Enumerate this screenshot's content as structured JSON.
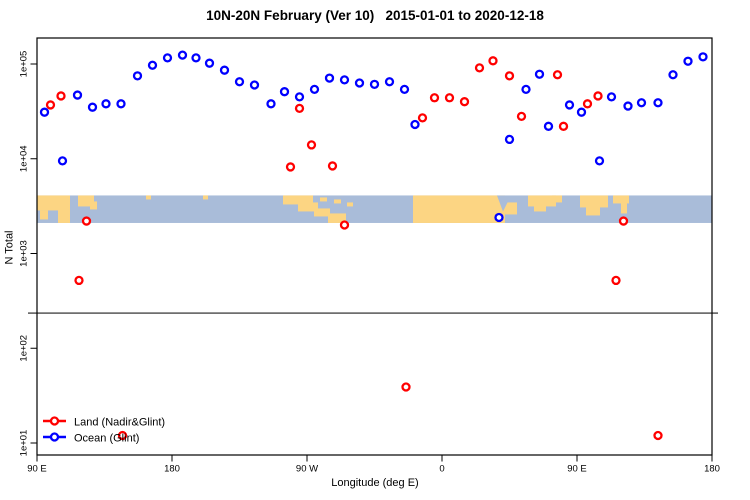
{
  "title": "10N-20N February (Ver 10)   2015-01-01 to 2020-12-18",
  "chart_data": {
    "type": "scatter",
    "title": "10N-20N February (Ver 10)   2015-01-01 to 2020-12-18",
    "xlabel": "Longitude (deg E)",
    "ylabel": "N Total",
    "x_axis": {
      "min": 90,
      "max": 540,
      "ticks": [
        {
          "value": 90,
          "label": "90 E"
        },
        {
          "value": 180,
          "label": "180"
        },
        {
          "value": 270,
          "label": "90 W"
        },
        {
          "value": 360,
          "label": "0"
        },
        {
          "value": 450,
          "label": "90 E"
        },
        {
          "value": 540,
          "label": "180"
        }
      ]
    },
    "y_axis": {
      "scale": "log",
      "ticks": [
        {
          "value": 10,
          "label": "1e+01"
        },
        {
          "value": 100,
          "label": "1e+02"
        },
        {
          "value": 1000,
          "label": "1e+03"
        },
        {
          "value": 10000,
          "label": "1e+04"
        },
        {
          "value": 100000,
          "label": "1e+05"
        }
      ]
    },
    "reference_line": {
      "value": 235,
      "color": "#6e6e6e"
    },
    "map_band": {
      "description": "world coastline strip for 10N-20N latitude",
      "y_top_value": 4100,
      "y_bottom_value": 2100,
      "ocean_color": "#a9bcd9",
      "land_color": "#fcd583"
    },
    "legend_position": "bottom-left",
    "series": [
      {
        "name": "Land (Nadir&Glint)",
        "color": "#FF0000",
        "points": [
          [
            99,
            37000
          ],
          [
            106,
            46000
          ],
          [
            118,
            520
          ],
          [
            123,
            2200
          ],
          [
            147,
            12
          ],
          [
            259,
            8200
          ],
          [
            265,
            34000
          ],
          [
            273,
            14000
          ],
          [
            287,
            8400
          ],
          [
            295,
            2000
          ],
          [
            336,
            39
          ],
          [
            347,
            27000
          ],
          [
            355,
            44000
          ],
          [
            365,
            44000
          ],
          [
            375,
            40000
          ],
          [
            385,
            91000
          ],
          [
            394,
            108000
          ],
          [
            405,
            75000
          ],
          [
            413,
            28000
          ],
          [
            437,
            77000
          ],
          [
            441,
            22000
          ],
          [
            457,
            38000
          ],
          [
            464,
            46000
          ],
          [
            476,
            520
          ],
          [
            481,
            2200
          ],
          [
            504,
            12
          ]
        ]
      },
      {
        "name": "Ocean (Glint)",
        "color": "#0000FF",
        "points": [
          [
            95,
            31000
          ],
          [
            107,
            9500
          ],
          [
            117,
            47000
          ],
          [
            127,
            35000
          ],
          [
            136,
            38000
          ],
          [
            146,
            38000
          ],
          [
            157,
            75000
          ],
          [
            167,
            97000
          ],
          [
            177,
            116000
          ],
          [
            187,
            124000
          ],
          [
            196,
            116000
          ],
          [
            205,
            102000
          ],
          [
            215,
            86000
          ],
          [
            225,
            65000
          ],
          [
            235,
            60000
          ],
          [
            246,
            38000
          ],
          [
            255,
            51000
          ],
          [
            265,
            45000
          ],
          [
            275,
            54000
          ],
          [
            285,
            71000
          ],
          [
            295,
            68000
          ],
          [
            305,
            63000
          ],
          [
            315,
            61000
          ],
          [
            325,
            65000
          ],
          [
            335,
            54000
          ],
          [
            342,
            23000
          ],
          [
            398,
            2400
          ],
          [
            405,
            16000
          ],
          [
            416,
            54000
          ],
          [
            425,
            78000
          ],
          [
            431,
            22000
          ],
          [
            445,
            37000
          ],
          [
            453,
            31000
          ],
          [
            465,
            9500
          ],
          [
            473,
            45000
          ],
          [
            484,
            36000
          ],
          [
            493,
            39000
          ],
          [
            504,
            39000
          ],
          [
            514,
            77000
          ],
          [
            524,
            107000
          ],
          [
            534,
            119000
          ]
        ]
      }
    ]
  }
}
